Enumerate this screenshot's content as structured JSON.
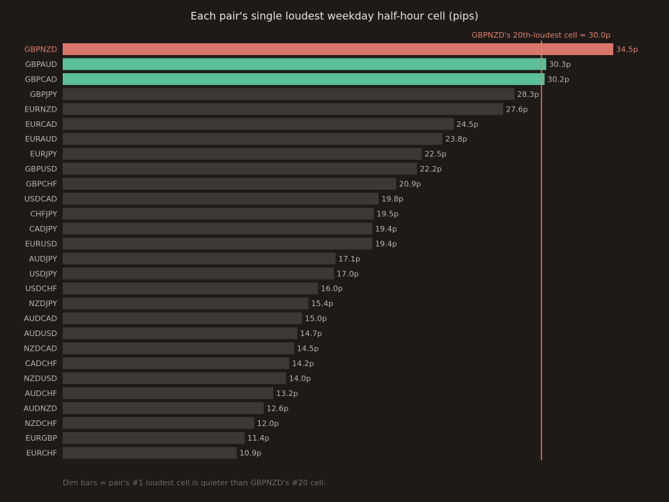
{
  "chart_data": {
    "type": "bar",
    "orientation": "horizontal",
    "title": "Each pair's single loudest weekday half-hour cell (pips)",
    "categories": [
      "GBPNZD",
      "GBPAUD",
      "GBPCAD",
      "GBPJPY",
      "EURNZD",
      "EURCAD",
      "EURAUD",
      "EURJPY",
      "GBPUSD",
      "GBPCHF",
      "USDCAD",
      "CHFJPY",
      "CADJPY",
      "EURUSD",
      "AUDJPY",
      "USDJPY",
      "USDCHF",
      "NZDJPY",
      "AUDCAD",
      "AUDUSD",
      "NZDCAD",
      "CADCHF",
      "NZDUSD",
      "AUDCHF",
      "AUDNZD",
      "NZDCHF",
      "EURGBP",
      "EURCHF"
    ],
    "values": [
      34.5,
      30.3,
      30.2,
      28.3,
      27.6,
      24.5,
      23.8,
      22.5,
      22.2,
      20.9,
      19.8,
      19.5,
      19.4,
      19.4,
      17.1,
      17.0,
      16.0,
      15.4,
      15.0,
      14.7,
      14.5,
      14.2,
      14.0,
      13.2,
      12.6,
      12.0,
      11.4,
      10.9
    ],
    "value_labels": [
      "34.5p",
      "30.3p",
      "30.2p",
      "28.3p",
      "27.6p",
      "24.5p",
      "23.8p",
      "22.5p",
      "22.2p",
      "20.9p",
      "19.8p",
      "19.5p",
      "19.4p",
      "19.4p",
      "17.1p",
      "17.0p",
      "16.0p",
      "15.4p",
      "15.0p",
      "14.7p",
      "14.5p",
      "14.2p",
      "14.0p",
      "13.2p",
      "12.6p",
      "12.0p",
      "11.4p",
      "10.9p"
    ],
    "highlight": "GBPNZD",
    "reference_line": {
      "value": 30.0,
      "label": "GBPNZD's 20th-loudest cell = 30.0p"
    },
    "xlim": [
      0,
      34.5
    ],
    "grid": false,
    "colors": {
      "highlight": "#d9756a",
      "above_reference": "#5bbf98",
      "dim": "#3d3833",
      "reference_line": "#e0806c"
    },
    "footnote": "Dim bars = pair's #1 loudest cell is quieter than GBPNZD's #20 cell."
  }
}
